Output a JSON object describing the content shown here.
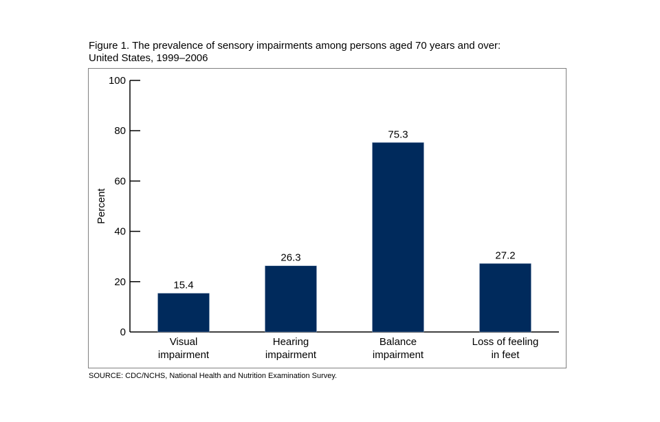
{
  "title_line1": "Figure 1. The prevalence of sensory impairments among persons aged 70 years and over:",
  "title_line2": "United States, 1999–2006",
  "source": "SOURCE: CDC/NCHS, National Health and Nutrition Examination Survey.",
  "colors": {
    "bar": "#002a5c",
    "axis": "#000000",
    "frame": "#7f7f7f"
  },
  "chart_data": {
    "type": "bar",
    "title": "Figure 1. The prevalence of sensory impairments among persons aged 70 years and over: United States, 1999–2006",
    "xlabel": "",
    "ylabel": "Percent",
    "ylim": [
      0,
      100
    ],
    "yticks": [
      0,
      20,
      40,
      60,
      80,
      100
    ],
    "grid": false,
    "categories": [
      [
        "Visual",
        "impairment"
      ],
      [
        "Hearing",
        "impairment"
      ],
      [
        "Balance",
        "impairment"
      ],
      [
        "Loss of feeling",
        "in feet"
      ]
    ],
    "values": [
      15.4,
      26.3,
      75.3,
      27.2
    ],
    "value_labels": [
      "15.4",
      "26.3",
      "75.3",
      "27.2"
    ]
  }
}
